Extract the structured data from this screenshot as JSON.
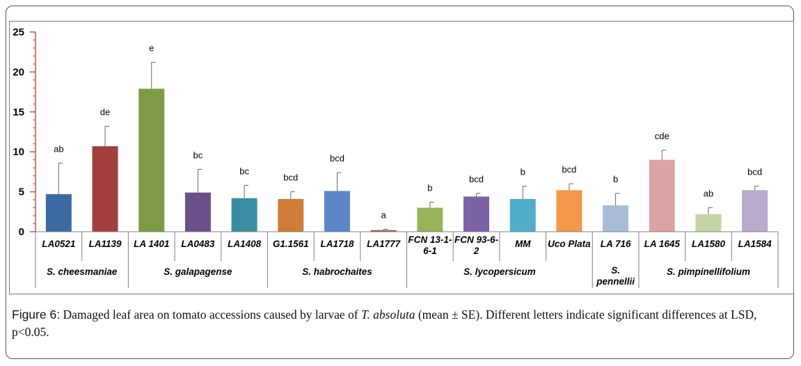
{
  "chart_data": {
    "type": "bar",
    "title": "",
    "xlabel": "",
    "ylabel": "",
    "ylim": [
      0,
      25
    ],
    "yticks": [
      0,
      5,
      10,
      15,
      20,
      25
    ],
    "grid": false,
    "legend": "none",
    "categories": [
      "LA0521",
      "LA1139",
      "LA 1401",
      "LA0483",
      "LA1408",
      "G1.1561",
      "LA1718",
      "LA1777",
      "FCN 13-1-6-1",
      "FCN 93-6-2",
      "MM",
      "Uco Plata",
      "LA 716",
      "LA 1645",
      "LA1580",
      "LA1584"
    ],
    "category_lines": [
      [
        "LA0521"
      ],
      [
        "LA1139"
      ],
      [
        "LA 1401"
      ],
      [
        "LA0483"
      ],
      [
        "LA1408"
      ],
      [
        "G1.1561"
      ],
      [
        "LA1718"
      ],
      [
        "LA1777"
      ],
      [
        "FCN 13-1-",
        "6-1"
      ],
      [
        "FCN 93-6-",
        "2"
      ],
      [
        "MM"
      ],
      [
        "Uco Plata"
      ],
      [
        "LA 716"
      ],
      [
        "LA 1645"
      ],
      [
        "LA1580"
      ],
      [
        "LA1584"
      ]
    ],
    "values": [
      4.7,
      10.7,
      17.9,
      4.9,
      4.2,
      4.1,
      5.1,
      0.2,
      3.0,
      4.4,
      4.1,
      5.2,
      3.3,
      9.0,
      2.2,
      5.2
    ],
    "errors": [
      3.9,
      2.5,
      3.3,
      2.9,
      1.6,
      0.9,
      2.3,
      0.1,
      0.7,
      0.4,
      1.6,
      0.8,
      1.5,
      1.2,
      0.8,
      0.5
    ],
    "letters": [
      "ab",
      "de",
      "e",
      "bc",
      "bc",
      "bcd",
      "bcd",
      "a",
      "b",
      "bcd",
      "b",
      "bcd",
      "b",
      "cde",
      "ab",
      "bcd"
    ],
    "colors": [
      "#3e6aa3",
      "#a13f3d",
      "#7f9a47",
      "#6a5189",
      "#3a8ea1",
      "#d07c39",
      "#5c86c6",
      "#b2504c",
      "#97b558",
      "#7b62a5",
      "#4eaec9",
      "#f5984a",
      "#a8bcd8",
      "#d9a4a3",
      "#c4d4a4",
      "#b7aacb"
    ],
    "groups": [
      {
        "label": "S. cheesmaniae",
        "span": [
          0,
          1
        ]
      },
      {
        "label": "S. galapagense",
        "span": [
          2,
          4
        ]
      },
      {
        "label": "S. habrochaites",
        "span": [
          5,
          7
        ]
      },
      {
        "label": "S. lycopersicum",
        "span": [
          8,
          11
        ]
      },
      {
        "label": "S. pennellii",
        "lines": [
          "S.",
          "pennellii"
        ],
        "span": [
          12,
          12
        ]
      },
      {
        "label": "S. pimpinellifolium",
        "span": [
          13,
          15
        ]
      }
    ]
  },
  "caption": {
    "lead": "Figure 6:",
    "text_1": " Damaged leaf area on tomato accessions caused by larvae of ",
    "species": "T. absoluta",
    "text_2": " (mean ± SE). Different letters indicate significant differences at LSD, p<0.05."
  }
}
